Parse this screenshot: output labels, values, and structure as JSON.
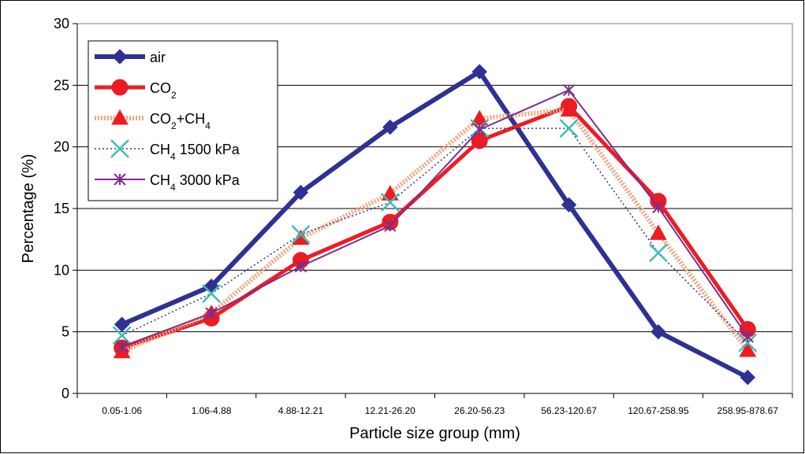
{
  "chart_data": {
    "type": "line",
    "title": "",
    "xlabel": "Particle size group (mm)",
    "ylabel": "Percentage (%)",
    "ylim": [
      0,
      30
    ],
    "yticks": [
      0,
      5,
      10,
      15,
      20,
      25,
      30
    ],
    "grid": "horizontal",
    "legend_position": "top-left",
    "categories": [
      "0.05-1.06",
      "1.06-4.88",
      "4.88-12.21",
      "12.21-26.20",
      "26.20-56.23",
      "56.23-120.67",
      "120.67-258.95",
      "258.95-878.67"
    ],
    "series": [
      {
        "name": "air",
        "legend_parts": [
          {
            "t": "air"
          }
        ],
        "marker": "diamond",
        "color": "#2e3192",
        "values": [
          5.6,
          8.7,
          16.3,
          21.6,
          26.1,
          15.3,
          5.0,
          1.3
        ]
      },
      {
        "name": "CO2",
        "legend_parts": [
          {
            "t": "CO"
          },
          {
            "t": "2",
            "sub": true
          }
        ],
        "marker": "circle",
        "color": "#ed1c24",
        "values": [
          3.7,
          6.1,
          10.8,
          13.9,
          20.5,
          23.3,
          15.6,
          5.2
        ]
      },
      {
        "name": "CO2+CH4",
        "legend_parts": [
          {
            "t": "CO"
          },
          {
            "t": "2",
            "sub": true
          },
          {
            "t": "+CH"
          },
          {
            "t": "4",
            "sub": true
          }
        ],
        "marker": "triangle",
        "color": "#ed1c24",
        "line_color": "#f4a582",
        "values": [
          3.4,
          6.5,
          12.6,
          16.2,
          22.3,
          23.0,
          13.0,
          3.5
        ]
      },
      {
        "name": "CH4 1500 kPa",
        "legend_parts": [
          {
            "t": "CH"
          },
          {
            "t": "4",
            "sub": true
          },
          {
            "t": " 1500 kPa"
          }
        ],
        "marker": "x",
        "color": "#3fbcb5",
        "line_color": "#2e3192",
        "values": [
          4.7,
          8.1,
          12.9,
          15.5,
          21.5,
          21.5,
          11.4,
          4.1
        ]
      },
      {
        "name": "CH4 3000 kPa",
        "legend_parts": [
          {
            "t": "CH"
          },
          {
            "t": "4",
            "sub": true
          },
          {
            "t": " 3000 kPa"
          }
        ],
        "marker": "asterisk",
        "color": "#7b2d8e",
        "values": [
          3.8,
          6.5,
          10.3,
          13.6,
          21.4,
          24.6,
          15.1,
          4.6
        ]
      }
    ]
  }
}
